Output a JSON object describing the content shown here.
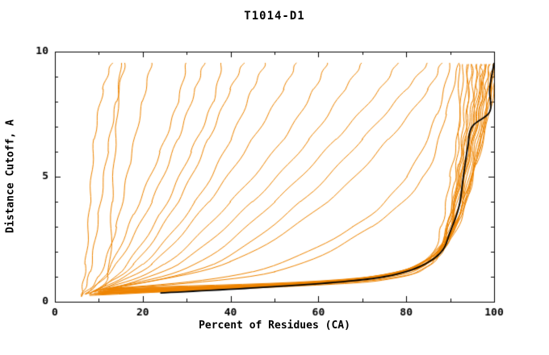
{
  "chart_data": {
    "type": "line",
    "title": "T1014-D1",
    "xlabel": "Percent of Residues (CA)",
    "ylabel": "Distance Cutoff, A",
    "xlim": [
      0,
      100
    ],
    "ylim": [
      0,
      10
    ],
    "xticks": [
      0,
      20,
      40,
      60,
      80,
      100
    ],
    "yticks": [
      0,
      5,
      10
    ],
    "x_minor_step": 10,
    "y_minor_step": 1,
    "grid": false,
    "legend": "none",
    "colors": {
      "model_lines": "#ee8400",
      "highlight_line": "#000000",
      "frame": "#000000",
      "background": "#ffffff"
    },
    "series": [
      {
        "name": "model-curve",
        "points": [
          [
            6,
            0.2
          ],
          [
            7,
            1.5
          ],
          [
            8,
            4
          ],
          [
            9,
            6.5
          ],
          [
            11,
            8.5
          ],
          [
            13,
            9.55
          ]
        ]
      },
      {
        "name": "model-curve",
        "points": [
          [
            6,
            0.2
          ],
          [
            8,
            1.2
          ],
          [
            10,
            3.5
          ],
          [
            12,
            6
          ],
          [
            14,
            8
          ],
          [
            16,
            9.55
          ]
        ]
      },
      {
        "name": "model-curve",
        "points": [
          [
            7,
            0.3
          ],
          [
            12,
            1.0
          ],
          [
            13,
            4
          ],
          [
            14,
            7
          ],
          [
            15,
            9.55
          ]
        ]
      },
      {
        "name": "model-curve",
        "points": [
          [
            6,
            0.25
          ],
          [
            10,
            1
          ],
          [
            14,
            3
          ],
          [
            17,
            5.5
          ],
          [
            20,
            8
          ],
          [
            22,
            9.55
          ]
        ]
      },
      {
        "name": "model-curve",
        "points": [
          [
            7,
            0.3
          ],
          [
            12,
            1.2
          ],
          [
            18,
            3.5
          ],
          [
            24,
            6
          ],
          [
            28,
            8
          ],
          [
            30,
            9.55
          ]
        ]
      },
      {
        "name": "model-curve",
        "points": [
          [
            7,
            0.3
          ],
          [
            14,
            1.5
          ],
          [
            22,
            4
          ],
          [
            28,
            6.5
          ],
          [
            32,
            8.5
          ],
          [
            34,
            9.55
          ]
        ]
      },
      {
        "name": "model-curve",
        "points": [
          [
            8,
            0.3
          ],
          [
            15,
            1.2
          ],
          [
            24,
            3.5
          ],
          [
            31,
            6
          ],
          [
            36,
            8
          ],
          [
            38,
            9.55
          ]
        ]
      },
      {
        "name": "model-curve",
        "points": [
          [
            8,
            0.35
          ],
          [
            18,
            1.5
          ],
          [
            28,
            4
          ],
          [
            35,
            6.5
          ],
          [
            40,
            8.5
          ],
          [
            43,
            9.55
          ]
        ]
      },
      {
        "name": "model-curve",
        "points": [
          [
            8,
            0.35
          ],
          [
            20,
            1.5
          ],
          [
            32,
            4
          ],
          [
            40,
            6.5
          ],
          [
            45,
            8.5
          ],
          [
            48,
            9.55
          ]
        ]
      },
      {
        "name": "model-curve",
        "points": [
          [
            9,
            0.4
          ],
          [
            22,
            1.5
          ],
          [
            35,
            4
          ],
          [
            45,
            6.5
          ],
          [
            52,
            8.5
          ],
          [
            55,
            9.55
          ]
        ]
      },
      {
        "name": "model-curve",
        "points": [
          [
            9,
            0.4
          ],
          [
            25,
            1.5
          ],
          [
            40,
            4
          ],
          [
            52,
            6.5
          ],
          [
            59,
            8.5
          ],
          [
            62,
            9.55
          ]
        ]
      },
      {
        "name": "model-curve",
        "points": [
          [
            10,
            0.4
          ],
          [
            28,
            1.5
          ],
          [
            45,
            4
          ],
          [
            58,
            6.5
          ],
          [
            66,
            8.5
          ],
          [
            70,
            9.55
          ]
        ]
      },
      {
        "name": "model-curve",
        "points": [
          [
            10,
            0.45
          ],
          [
            32,
            1.5
          ],
          [
            50,
            4
          ],
          [
            64,
            6.5
          ],
          [
            74,
            8.5
          ],
          [
            78,
            9.55
          ]
        ]
      },
      {
        "name": "model-curve",
        "points": [
          [
            11,
            0.5
          ],
          [
            36,
            1.5
          ],
          [
            56,
            4
          ],
          [
            70,
            6.5
          ],
          [
            80,
            8.5
          ],
          [
            85,
            9.55
          ]
        ]
      },
      {
        "name": "model-curve",
        "points": [
          [
            12,
            0.5
          ],
          [
            40,
            1.6
          ],
          [
            62,
            4
          ],
          [
            76,
            6.5
          ],
          [
            85,
            8.5
          ],
          [
            88,
            9.55
          ]
        ]
      },
      {
        "name": "model-curve",
        "points": [
          [
            12,
            0.5
          ],
          [
            45,
            1.2
          ],
          [
            68,
            3
          ],
          [
            80,
            5
          ],
          [
            87,
            7.5
          ],
          [
            90,
            9.55
          ]
        ]
      },
      {
        "name": "model-curve",
        "points": [
          [
            13,
            0.5
          ],
          [
            50,
            1.2
          ],
          [
            72,
            3
          ],
          [
            84,
            5
          ],
          [
            89,
            7.5
          ],
          [
            92,
            9.55
          ]
        ]
      },
      {
        "name": "model-curve",
        "points": [
          [
            8,
            0.3
          ],
          [
            40,
            0.6
          ],
          [
            70,
            0.9
          ],
          [
            84,
            1.5
          ],
          [
            88,
            3
          ],
          [
            90,
            5
          ],
          [
            92,
            7
          ],
          [
            93,
            9.5
          ]
        ]
      },
      {
        "name": "model-curve",
        "points": [
          [
            8,
            0.3
          ],
          [
            45,
            0.6
          ],
          [
            74,
            1.0
          ],
          [
            86,
            1.8
          ],
          [
            90,
            3.5
          ],
          [
            92,
            5.5
          ],
          [
            94,
            7.5
          ],
          [
            94,
            9.5
          ]
        ]
      },
      {
        "name": "model-curve",
        "points": [
          [
            9,
            0.3
          ],
          [
            50,
            0.65
          ],
          [
            78,
            1.1
          ],
          [
            87,
            2
          ],
          [
            91,
            4
          ],
          [
            93,
            6
          ],
          [
            95,
            8
          ],
          [
            95,
            9.5
          ]
        ]
      },
      {
        "name": "model-curve",
        "points": [
          [
            9,
            0.35
          ],
          [
            55,
            0.7
          ],
          [
            80,
            1.2
          ],
          [
            88,
            2.2
          ],
          [
            92,
            4.5
          ],
          [
            94,
            6.5
          ],
          [
            96,
            8.5
          ],
          [
            96,
            9.5
          ]
        ]
      },
      {
        "name": "model-curve",
        "points": [
          [
            10,
            0.35
          ],
          [
            58,
            0.7
          ],
          [
            82,
            1.3
          ],
          [
            89,
            2.5
          ],
          [
            93,
            5
          ],
          [
            95,
            7
          ],
          [
            97,
            9
          ],
          [
            97,
            9.5
          ]
        ]
      },
      {
        "name": "model-curve",
        "points": [
          [
            10,
            0.4
          ],
          [
            60,
            0.75
          ],
          [
            83,
            1.4
          ],
          [
            90,
            2.8
          ],
          [
            94,
            5.5
          ],
          [
            96,
            7.5
          ],
          [
            98,
            9.5
          ]
        ]
      },
      {
        "name": "model-curve",
        "points": [
          [
            10,
            0.4
          ],
          [
            62,
            0.8
          ],
          [
            84,
            1.5
          ],
          [
            91,
            3
          ],
          [
            95,
            6
          ],
          [
            97,
            8
          ],
          [
            98,
            9.5
          ]
        ]
      },
      {
        "name": "model-curve",
        "points": [
          [
            11,
            0.4
          ],
          [
            64,
            0.8
          ],
          [
            85,
            1.6
          ],
          [
            92,
            3.5
          ],
          [
            96,
            6.5
          ],
          [
            98,
            8.5
          ],
          [
            99,
            9.5
          ]
        ]
      },
      {
        "name": "model-curve",
        "points": [
          [
            11,
            0.45
          ],
          [
            66,
            0.85
          ],
          [
            86,
            1.8
          ],
          [
            93,
            4
          ],
          [
            97,
            7
          ],
          [
            99,
            9.5
          ]
        ]
      },
      {
        "name": "model-curve",
        "points": [
          [
            11,
            0.45
          ],
          [
            68,
            0.9
          ],
          [
            87,
            2
          ],
          [
            94,
            4.5
          ],
          [
            98,
            7.5
          ],
          [
            100,
            9.5
          ]
        ]
      },
      {
        "name": "model-curve",
        "points": [
          [
            12,
            0.5
          ],
          [
            70,
            0.95
          ],
          [
            88,
            2.2
          ],
          [
            95,
            5
          ],
          [
            99,
            8
          ],
          [
            100,
            9.5
          ]
        ]
      },
      {
        "name": "model-curve",
        "points": [
          [
            12,
            0.5
          ],
          [
            72,
            1.0
          ],
          [
            89,
            2.5
          ],
          [
            96,
            5.5
          ],
          [
            100,
            8.5
          ],
          [
            100,
            9.5
          ]
        ]
      },
      {
        "name": "model-curve",
        "points": [
          [
            9,
            0.3
          ],
          [
            52,
            0.6
          ],
          [
            76,
            0.9
          ],
          [
            86,
            1.6
          ],
          [
            90,
            3.2
          ],
          [
            92,
            5.2
          ],
          [
            93,
            7.2
          ],
          [
            94,
            9.5
          ]
        ]
      },
      {
        "name": "model-curve",
        "points": [
          [
            8,
            0.25
          ],
          [
            42,
            0.55
          ],
          [
            72,
            0.85
          ],
          [
            85,
            1.4
          ],
          [
            89,
            2.8
          ],
          [
            91,
            4.8
          ],
          [
            92,
            6.8
          ],
          [
            92,
            9.5
          ]
        ]
      },
      {
        "name": "model-curve",
        "points": [
          [
            9,
            0.3
          ],
          [
            48,
            0.6
          ],
          [
            75,
            0.95
          ],
          [
            86,
            1.7
          ],
          [
            90,
            3.4
          ],
          [
            93,
            5.8
          ],
          [
            94,
            8
          ],
          [
            95,
            9.5
          ]
        ]
      },
      {
        "name": "model-curve",
        "points": [
          [
            10,
            0.35
          ],
          [
            56,
            0.7
          ],
          [
            81,
            1.25
          ],
          [
            89,
            2.4
          ],
          [
            92,
            4.6
          ],
          [
            95,
            6.8
          ],
          [
            96,
            9.5
          ]
        ]
      },
      {
        "name": "model-curve",
        "points": [
          [
            10,
            0.4
          ],
          [
            59,
            0.72
          ],
          [
            82,
            1.35
          ],
          [
            90,
            2.6
          ],
          [
            93,
            4.8
          ],
          [
            96,
            7.2
          ],
          [
            97,
            9.5
          ]
        ]
      },
      {
        "name": "model-curve",
        "points": [
          [
            11,
            0.42
          ],
          [
            63,
            0.8
          ],
          [
            85,
            1.55
          ],
          [
            91,
            3.2
          ],
          [
            94,
            5.6
          ],
          [
            97,
            7.8
          ],
          [
            98,
            9.5
          ]
        ]
      },
      {
        "name": "model-curve",
        "points": [
          [
            12,
            0.48
          ],
          [
            69,
            0.92
          ],
          [
            88,
            2.1
          ],
          [
            94,
            4.2
          ],
          [
            97,
            6.6
          ],
          [
            99,
            8.8
          ],
          [
            100,
            9.5
          ]
        ]
      },
      {
        "name": "model-curve",
        "points": [
          [
            13,
            0.55
          ],
          [
            74,
            1.05
          ],
          [
            90,
            2.7
          ],
          [
            96,
            5.8
          ],
          [
            99,
            8.2
          ],
          [
            100,
            9.5
          ]
        ]
      }
    ],
    "highlight": {
      "name": "black-curve",
      "points": [
        [
          24,
          0.35
        ],
        [
          45,
          0.55
        ],
        [
          62,
          0.75
        ],
        [
          75,
          1.0
        ],
        [
          83,
          1.4
        ],
        [
          88,
          2.0
        ],
        [
          90,
          2.8
        ],
        [
          92,
          3.8
        ],
        [
          93,
          5.0
        ],
        [
          94,
          6.2
        ],
        [
          95,
          7.0
        ],
        [
          99,
          7.6
        ],
        [
          99,
          8.5
        ],
        [
          100,
          9.55
        ]
      ]
    }
  }
}
